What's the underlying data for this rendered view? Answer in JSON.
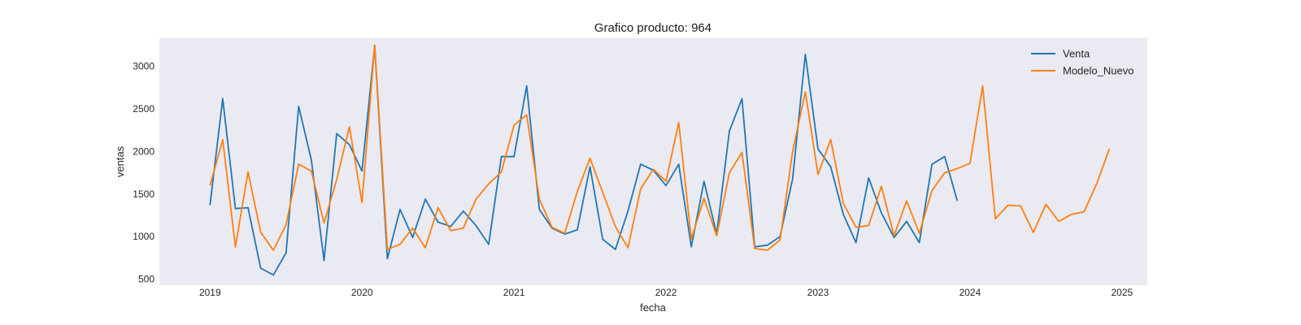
{
  "chart_data": {
    "type": "line",
    "title": "Grafico producto: 964",
    "xlabel": "fecha",
    "ylabel": "ventas",
    "x_ticks": [
      "2019",
      "2020",
      "2021",
      "2022",
      "2023",
      "2024",
      "2025"
    ],
    "y_ticks": [
      500,
      1000,
      1500,
      2000,
      2500,
      3000
    ],
    "xlim": [
      "2018-09",
      "2025-03"
    ],
    "ylim": [
      430,
      3330
    ],
    "grid": false,
    "legend": "top-right",
    "background": "#eaeaf2",
    "series": [
      {
        "name": "Venta",
        "color": "#1f77b4",
        "start": "2019-01",
        "values": [
          1370,
          2620,
          1330,
          1340,
          630,
          550,
          810,
          2530,
          1900,
          720,
          2210,
          2080,
          1770,
          3240,
          740,
          1320,
          990,
          1440,
          1170,
          1120,
          1300,
          1130,
          910,
          1940,
          1940,
          2770,
          1320,
          1100,
          1030,
          1080,
          1820,
          970,
          850,
          1300,
          1850,
          1780,
          1600,
          1850,
          880,
          1650,
          1030,
          2240,
          2620,
          880,
          900,
          1000,
          1680,
          3140,
          2030,
          1820,
          1260,
          930,
          1690,
          1280,
          990,
          1180,
          930,
          1850,
          1940,
          1420
        ]
      },
      {
        "name": "Modelo_Nuevo",
        "color": "#ff7f0e",
        "start": "2019-01",
        "values": [
          1600,
          2140,
          880,
          1760,
          1050,
          840,
          1140,
          1850,
          1770,
          1160,
          1670,
          2290,
          1400,
          3250,
          850,
          910,
          1100,
          870,
          1340,
          1070,
          1100,
          1440,
          1620,
          1760,
          2310,
          2430,
          1440,
          1110,
          1040,
          1530,
          1920,
          1520,
          1120,
          870,
          1560,
          1790,
          1650,
          2340,
          970,
          1450,
          1010,
          1750,
          1990,
          860,
          840,
          960,
          2000,
          2700,
          1730,
          2140,
          1390,
          1110,
          1130,
          1590,
          1010,
          1420,
          1040,
          1540,
          1750,
          1800,
          1860,
          2770,
          1210,
          1370,
          1360,
          1050,
          1380,
          1180,
          1260,
          1290,
          1620,
          2030
        ]
      }
    ]
  }
}
